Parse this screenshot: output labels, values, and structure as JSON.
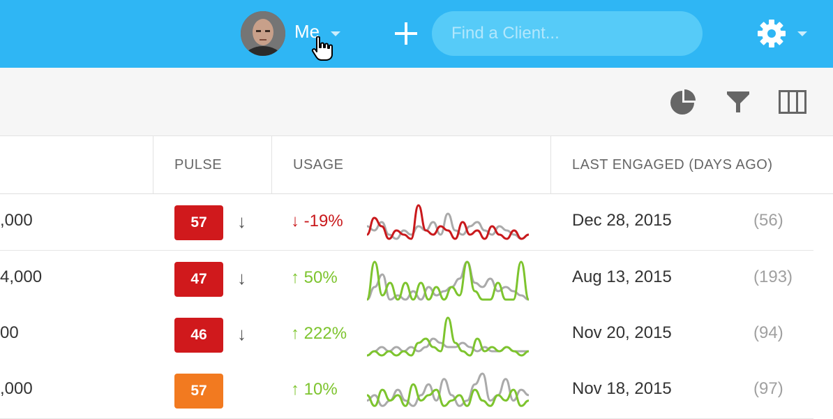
{
  "topbar": {
    "user_label": "Me",
    "search_placeholder": "Find a Client...",
    "colors": {
      "background": "#2fb6f4",
      "search_bg": "#56cbf8"
    }
  },
  "toolbar": {
    "icons": [
      "pie-chart-icon",
      "filter-icon",
      "columns-icon"
    ]
  },
  "table": {
    "headers": {
      "pulse": "PULSE",
      "usage": "USAGE",
      "last_engaged": "LAST ENGAGED (DAYS AGO)"
    },
    "rows": [
      {
        "amount": ",000",
        "pulse": "57",
        "pulse_color": "#d0191c",
        "pulse_trend": "↓",
        "usage_change": "↓ -19%",
        "usage_color": "#c9191c",
        "spark_current": [
          2,
          6,
          4,
          1,
          3,
          2,
          1,
          9,
          3,
          2,
          4,
          3,
          1,
          5,
          2,
          3,
          1,
          4,
          2,
          1,
          3,
          1,
          2
        ],
        "spark_previous": [
          4,
          3,
          5,
          2,
          1,
          3,
          2,
          4,
          3,
          5,
          2,
          7,
          3,
          2,
          4,
          5,
          3,
          2,
          4,
          3,
          2,
          1,
          2
        ],
        "date": "Dec 28, 2015",
        "days": "(56)"
      },
      {
        "amount": "4,000",
        "pulse": "47",
        "pulse_color": "#d0191c",
        "pulse_trend": "↓",
        "usage_change": "↑ 50%",
        "usage_color": "#7dc42e",
        "spark_current": [
          0,
          9,
          1,
          4,
          0,
          4,
          0,
          4,
          0,
          3,
          0,
          3,
          1,
          9,
          2,
          0,
          0,
          4,
          0,
          0,
          9,
          0
        ],
        "spark_previous": [
          0,
          3,
          6,
          0,
          1,
          0,
          2,
          0,
          3,
          1,
          2,
          3,
          5,
          9,
          4,
          3,
          5,
          2,
          3,
          2,
          1,
          0
        ],
        "date": "Aug 13, 2015",
        "days": "(193)"
      },
      {
        "amount": "00",
        "pulse": "46",
        "pulse_color": "#d0191c",
        "pulse_trend": "↓",
        "usage_change": "↑ 222%",
        "usage_color": "#7dc42e",
        "spark_current": [
          0,
          1,
          0,
          1,
          0,
          1,
          0,
          3,
          4,
          2,
          1,
          9,
          3,
          1,
          0,
          4,
          1,
          2,
          1,
          2,
          1,
          0,
          1
        ],
        "spark_previous": [
          0,
          1,
          2,
          1,
          2,
          1,
          2,
          1,
          2,
          4,
          3,
          2,
          2,
          3,
          2,
          1,
          2,
          1,
          1,
          2,
          1,
          1,
          1
        ],
        "date": "Nov 20, 2015",
        "days": "(94)"
      },
      {
        "amount": ",000",
        "pulse": "57",
        "pulse_color": "#f27a20",
        "pulse_trend": "",
        "usage_change": "↑ 10%",
        "usage_color": "#7dc42e",
        "spark_current": [
          3,
          1,
          4,
          2,
          3,
          1,
          5,
          2,
          3,
          4,
          1,
          2,
          3,
          1,
          4,
          2,
          1,
          3,
          2,
          4,
          1,
          2
        ],
        "spark_previous": [
          2,
          3,
          1,
          2,
          4,
          2,
          1,
          3,
          5,
          2,
          6,
          3,
          1,
          2,
          5,
          7,
          2,
          3,
          6,
          2,
          4,
          3
        ],
        "date": "Nov 18, 2015",
        "days": "(97)"
      }
    ]
  }
}
